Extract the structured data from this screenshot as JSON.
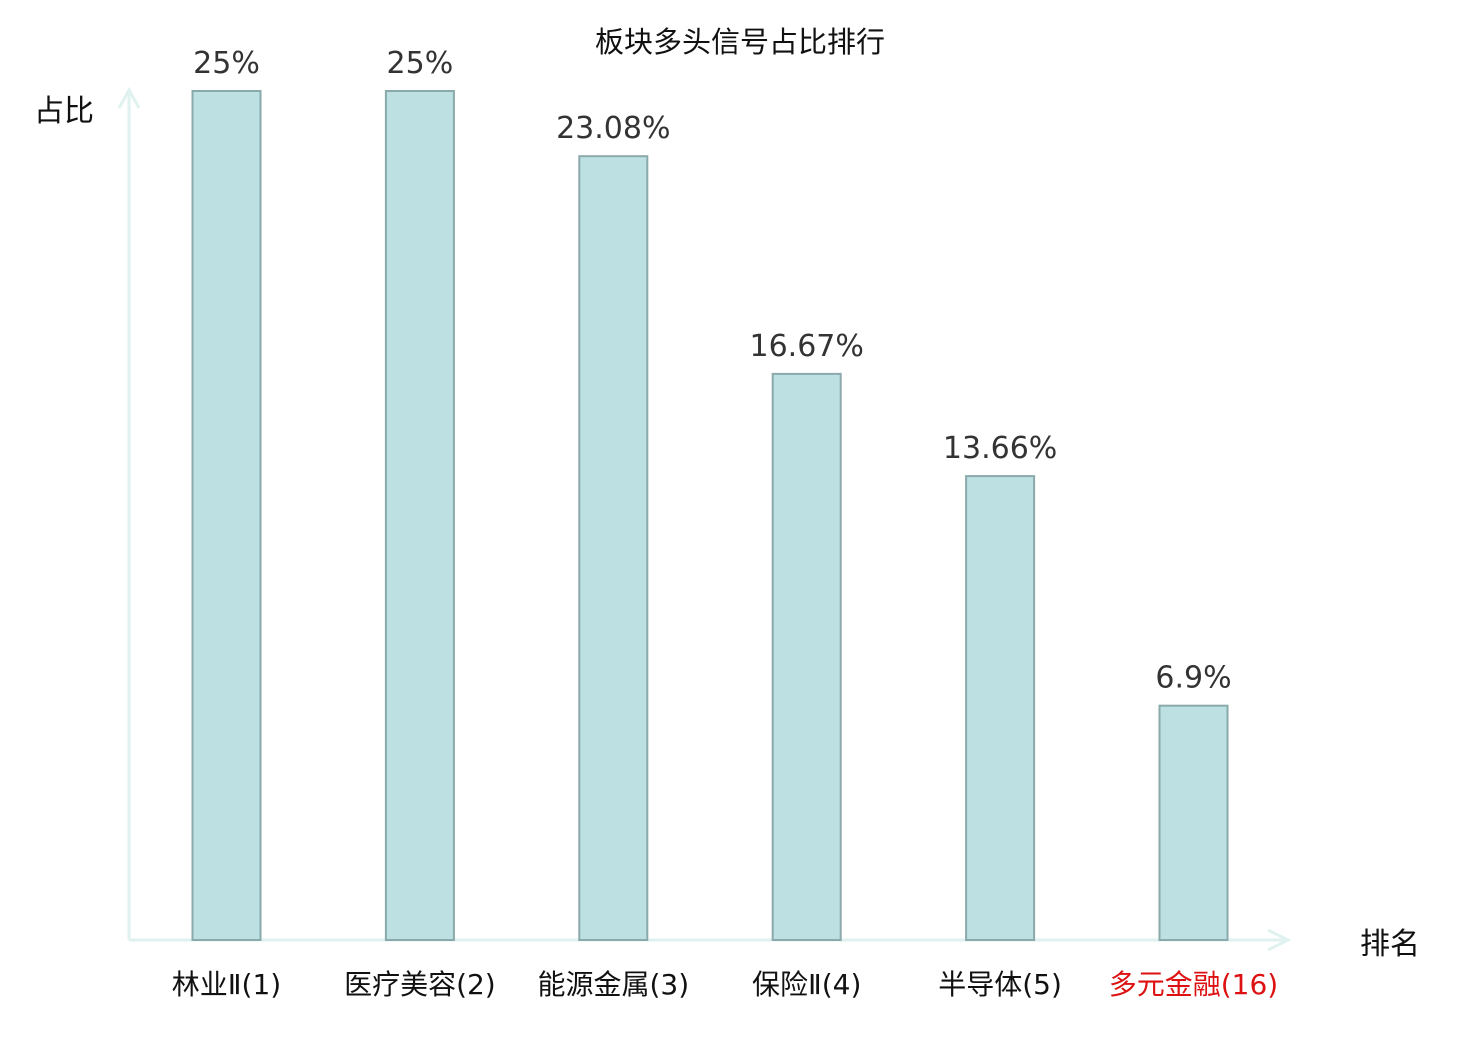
{
  "chart_data": {
    "type": "bar",
    "title": "板块多头信号占比排行",
    "ylabel": "占比",
    "xlabel": "排名",
    "categories": [
      "林业Ⅱ(1)",
      "医疗美容(2)",
      "能源金属(3)",
      "保险Ⅱ(4)",
      "半导体(5)",
      "多元金融(16)"
    ],
    "values": [
      25,
      25,
      23.08,
      16.67,
      13.66,
      6.9
    ],
    "value_labels": [
      "25%",
      "25%",
      "23.08%",
      "16.67%",
      "13.66%",
      "6.9%"
    ],
    "highlight_index": 5,
    "ylim": [
      0,
      25
    ],
    "grid": false,
    "legend": "none",
    "colors": {
      "bar_fill": "#bde0e3",
      "bar_stroke": "#8aa9ab",
      "axis": "#dff2ef",
      "highlight_text": "#dd1111"
    }
  }
}
